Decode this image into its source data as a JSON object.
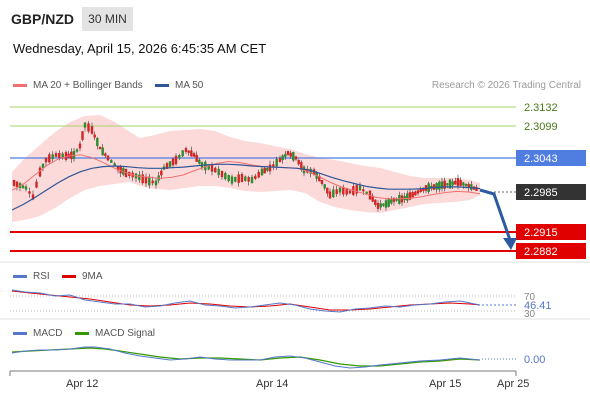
{
  "header": {
    "symbol": "GBP/NZD",
    "timeframe": "30 MIN",
    "datetime": "Wednesday, April 15, 2026 6:45:35 AM CET"
  },
  "credit": "Research © 2026 Trading Central",
  "legend_main": [
    {
      "label": "MA 20 + Bollinger Bands",
      "color": "#f07070"
    },
    {
      "label": "MA 50",
      "color": "#2f5597"
    }
  ],
  "legend_rsi": [
    {
      "label": "RSI",
      "color": "#5577cc"
    },
    {
      "label": "9MA",
      "color": "#dd0000"
    }
  ],
  "legend_macd": [
    {
      "label": "MACD",
      "color": "#5577cc"
    },
    {
      "label": "MACD Signal",
      "color": "#339900"
    }
  ],
  "colors": {
    "up": "#2e8b2e",
    "down": "#d42424",
    "resistance": "#a6d36a",
    "pivot": "#4f7de0",
    "support": "#e00000",
    "current": "#333333",
    "band": "#fbd3d3",
    "arrow": "#2c5aa0"
  },
  "levels": {
    "resistance": [
      "2.3132",
      "2.3099"
    ],
    "pivot": "2.3043",
    "current": "2.2985",
    "support": [
      "2.2915",
      "2.2882"
    ]
  },
  "rsi": {
    "upper": "70",
    "lower": "30",
    "value": "46.41"
  },
  "macd": {
    "value": "0.00"
  },
  "x_axis": {
    "labels": [
      "Apr 12",
      "Apr 14",
      "Apr 15",
      "Apr 25"
    ]
  },
  "chart_data": {
    "type": "line",
    "y_range": [
      2.2865,
      2.3145
    ],
    "levels": {
      "resistance": [
        2.3132,
        2.3099
      ],
      "pivot": 2.3043,
      "last": 2.2985,
      "support": [
        2.2915,
        2.2882
      ]
    },
    "ma20": [
      2.2985,
      2.2996,
      2.3012,
      2.3028,
      2.304,
      2.3046,
      2.3048,
      2.3043,
      2.3034,
      2.3024,
      2.3016,
      2.301,
      2.3008,
      2.3006,
      2.3008,
      2.3012,
      2.302,
      2.3027,
      2.3033,
      2.3036,
      2.3034,
      2.303,
      2.3027,
      2.3026,
      2.3025,
      2.3024,
      2.3018,
      2.3008,
      2.2998,
      2.299,
      2.2984,
      2.2978,
      2.2972,
      2.297,
      2.297,
      2.2971,
      2.2974,
      2.2978,
      2.2981,
      2.2983,
      2.2982,
      2.2979
    ],
    "ma50": [
      2.295,
      2.296,
      2.2972,
      2.2985,
      2.2998,
      2.3009,
      2.3018,
      2.3024,
      2.3027,
      2.3028,
      2.3027,
      2.3025,
      2.3024,
      2.3024,
      2.3025,
      2.3026,
      2.3028,
      2.303,
      2.3031,
      2.3031,
      2.303,
      2.3028,
      2.3027,
      2.3026,
      2.3025,
      2.3024,
      2.3021,
      2.3015,
      2.3008,
      2.3002,
      2.2997,
      2.2992,
      2.2989,
      2.2987,
      2.2987,
      2.2987,
      2.2988,
      2.299,
      2.2991,
      2.2991,
      2.299,
      2.2988
    ]
  }
}
